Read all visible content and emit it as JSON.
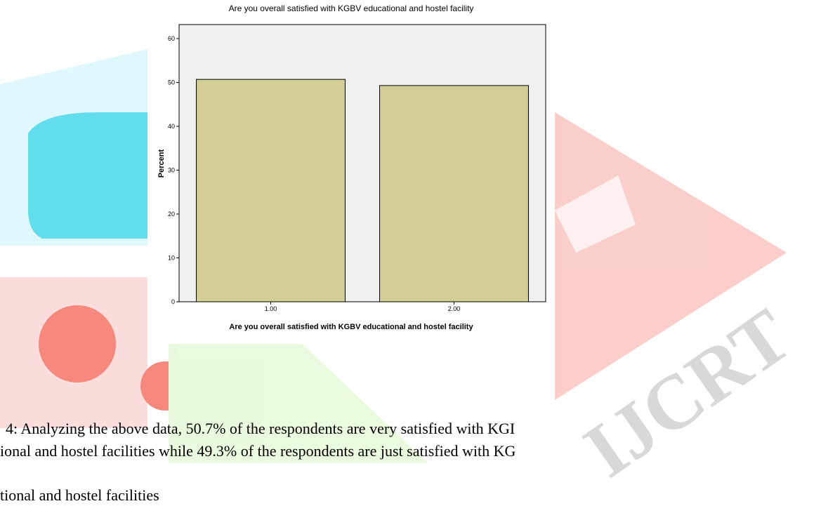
{
  "watermark": "IJCRT",
  "chart_data": {
    "type": "bar",
    "title": "Are you overall satisfied with KGBV educational and hostel facility",
    "x_label": "Are you overall satisfied with KGBV educational and hostel facility",
    "y_label": "Percent",
    "categories": [
      "1.00",
      "2.00"
    ],
    "values": [
      50.7,
      49.3
    ],
    "color": "#d3ce96",
    "ylim": [
      0,
      63.2
    ],
    "yticks": [
      0,
      10,
      20,
      30,
      40,
      50,
      60
    ]
  },
  "paragraph": {
    "lines": [
      "4: Analyzing the above data, 50.7% of the respondents are very satisfied with KGI",
      "ional and hostel facilities while 49.3% of the respondents are just satisfied with KG",
      "tional and hostel facilities"
    ]
  }
}
